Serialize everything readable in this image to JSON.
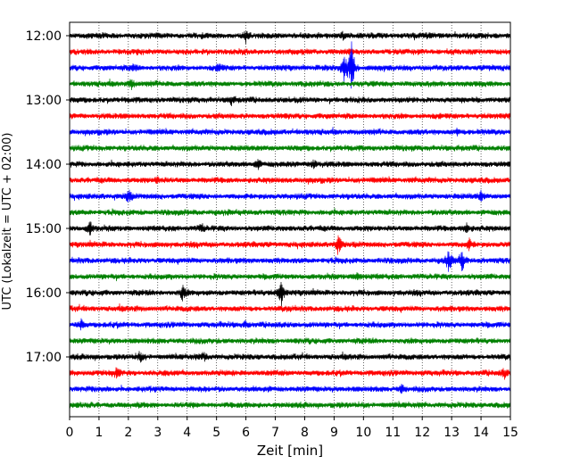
{
  "chart_data": {
    "type": "line",
    "title": "",
    "xlabel": "Zeit  [min]",
    "ylabel": "UTC (Lokalzeit = UTC + 02:00)",
    "xlim": [
      0,
      15
    ],
    "x_ticks": [
      0,
      1,
      2,
      3,
      4,
      5,
      6,
      7,
      8,
      9,
      10,
      11,
      12,
      13,
      14,
      15
    ],
    "y_tick_labels": [
      "12:00",
      "13:00",
      "14:00",
      "15:00",
      "16:00",
      "17:00"
    ],
    "trace_interval_min": 15,
    "start_time": "12:00",
    "trace_count": 24,
    "trace_colors": [
      "#000000",
      "#ff0000",
      "#0000ff",
      "#008000"
    ],
    "vertical_grid": "dotted",
    "events": [
      {
        "trace": 0,
        "minute": 6.0,
        "amp": 0.5
      },
      {
        "trace": 0,
        "minute": 9.3,
        "amp": 0.4
      },
      {
        "trace": 2,
        "minute": 9.6,
        "amp": 3.3
      },
      {
        "trace": 2,
        "minute": 9.35,
        "amp": 1.8
      },
      {
        "trace": 2,
        "minute": 2.2,
        "amp": 0.4
      },
      {
        "trace": 2,
        "minute": 5.1,
        "amp": 0.4
      },
      {
        "trace": 3,
        "minute": 2.1,
        "amp": 0.6
      },
      {
        "trace": 4,
        "minute": 5.5,
        "amp": 0.5
      },
      {
        "trace": 6,
        "minute": 13.2,
        "amp": 0.4
      },
      {
        "trace": 8,
        "minute": 6.4,
        "amp": 0.6
      },
      {
        "trace": 8,
        "minute": 8.3,
        "amp": 0.6
      },
      {
        "trace": 9,
        "minute": 3.0,
        "amp": 0.4
      },
      {
        "trace": 10,
        "minute": 2.0,
        "amp": 0.8
      },
      {
        "trace": 10,
        "minute": 14.0,
        "amp": 0.5
      },
      {
        "trace": 12,
        "minute": 0.7,
        "amp": 0.9
      },
      {
        "trace": 12,
        "minute": 4.5,
        "amp": 0.5
      },
      {
        "trace": 12,
        "minute": 13.5,
        "amp": 0.6
      },
      {
        "trace": 13,
        "minute": 9.15,
        "amp": 1.1
      },
      {
        "trace": 13,
        "minute": 13.6,
        "amp": 0.7
      },
      {
        "trace": 14,
        "minute": 12.9,
        "amp": 1.3
      },
      {
        "trace": 14,
        "minute": 13.35,
        "amp": 1.3
      },
      {
        "trace": 15,
        "minute": 9.8,
        "amp": 0.5
      },
      {
        "trace": 16,
        "minute": 3.85,
        "amp": 1.0
      },
      {
        "trace": 16,
        "minute": 7.2,
        "amp": 1.9
      },
      {
        "trace": 18,
        "minute": 0.4,
        "amp": 0.6
      },
      {
        "trace": 18,
        "minute": 6.0,
        "amp": 0.4
      },
      {
        "trace": 20,
        "minute": 2.4,
        "amp": 0.5
      },
      {
        "trace": 20,
        "minute": 4.6,
        "amp": 0.4
      },
      {
        "trace": 21,
        "minute": 1.6,
        "amp": 0.5
      },
      {
        "trace": 21,
        "minute": 14.8,
        "amp": 0.5
      },
      {
        "trace": 22,
        "minute": 11.3,
        "amp": 0.4
      }
    ]
  }
}
